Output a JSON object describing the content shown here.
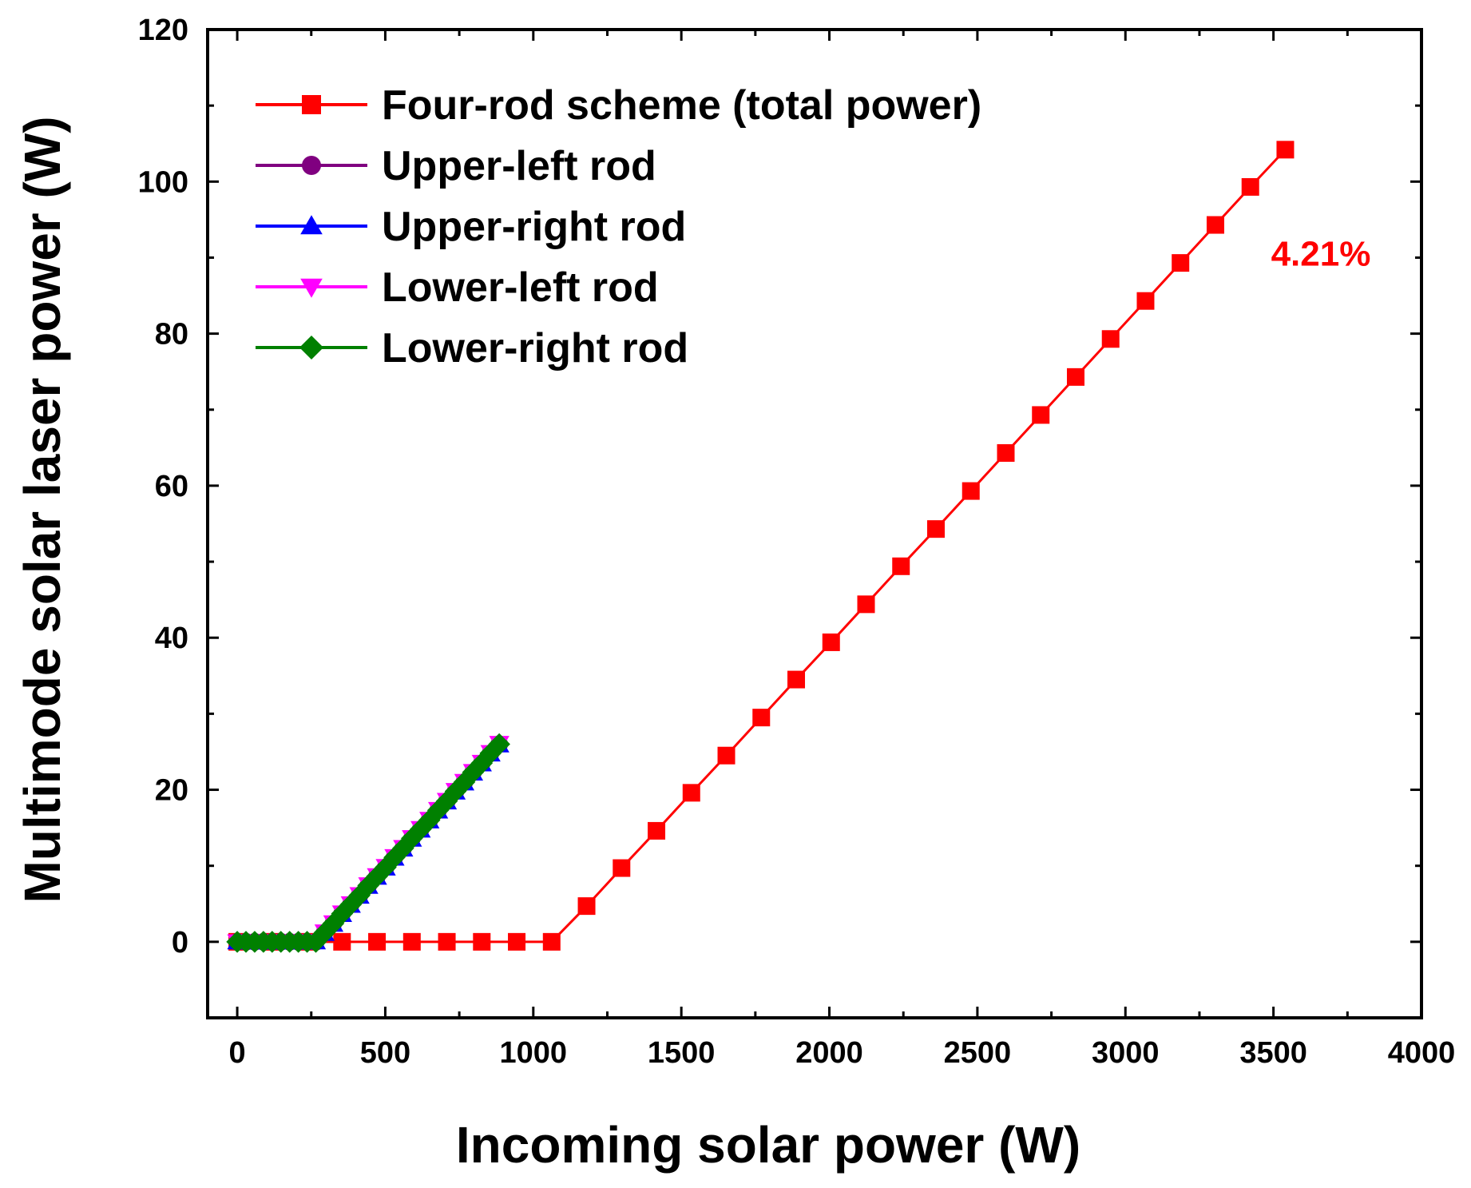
{
  "chart_data": {
    "type": "line",
    "title": "",
    "xlabel": "Incoming solar power (W)",
    "ylabel": "Multimode solar laser power (W)",
    "xlim": [
      -100,
      4000
    ],
    "ylim": [
      -10,
      120
    ],
    "xticks": [
      0,
      500,
      1000,
      1500,
      2000,
      2500,
      3000,
      3500,
      4000
    ],
    "yticks": [
      0,
      20,
      40,
      60,
      80,
      100,
      120
    ],
    "grid": false,
    "legend_position": "top-left",
    "series": [
      {
        "name": "Four-rod scheme (total power)",
        "color": "#ff0000",
        "marker": "square",
        "x": [
          0,
          118,
          236,
          354,
          472,
          590,
          708,
          826,
          944,
          1062,
          1180,
          1298,
          1416,
          1534,
          1652,
          1770,
          1888,
          2006,
          2124,
          2242,
          2360,
          2478,
          2596,
          2714,
          2832,
          2950,
          3068,
          3186,
          3304,
          3422,
          3540
        ],
        "y": [
          0,
          0,
          0,
          0,
          0,
          0,
          0,
          0,
          0,
          0,
          4.7,
          9.7,
          14.6,
          19.6,
          24.5,
          29.5,
          34.5,
          39.4,
          44.4,
          49.4,
          54.3,
          59.3,
          64.3,
          69.3,
          74.3,
          79.3,
          84.3,
          89.3,
          94.3,
          99.3,
          104.2
        ]
      },
      {
        "name": "Upper-left rod",
        "color": "#800080",
        "marker": "circle",
        "x": [
          0,
          29.5,
          59,
          88.5,
          118,
          147.5,
          177,
          206.5,
          236,
          265.5,
          295,
          324.5,
          354,
          383.5,
          413,
          442.5,
          472,
          501.5,
          531,
          560.5,
          590,
          619.5,
          649,
          678.5,
          708,
          737.5,
          767,
          796.5,
          826,
          855.5,
          885
        ],
        "y": [
          0,
          0,
          0,
          0,
          0,
          0,
          0,
          0,
          0,
          0,
          1.2,
          2.4,
          3.7,
          4.9,
          6.1,
          7.4,
          8.6,
          9.8,
          11.1,
          12.3,
          13.6,
          14.8,
          16.0,
          17.3,
          18.5,
          19.8,
          21.0,
          22.3,
          23.5,
          24.8,
          26.0
        ]
      },
      {
        "name": "Upper-right rod",
        "color": "#0000ff",
        "marker": "triangle-up",
        "x": [
          0,
          29.5,
          59,
          88.5,
          118,
          147.5,
          177,
          206.5,
          236,
          265.5,
          295,
          324.5,
          354,
          383.5,
          413,
          442.5,
          472,
          501.5,
          531,
          560.5,
          590,
          619.5,
          649,
          678.5,
          708,
          737.5,
          767,
          796.5,
          826,
          855.5,
          885
        ],
        "y": [
          0,
          0,
          0,
          0,
          0,
          0,
          0,
          0,
          0,
          0,
          1.1,
          2.3,
          3.6,
          4.8,
          6.0,
          7.3,
          8.5,
          9.7,
          11.0,
          12.2,
          13.5,
          14.7,
          15.9,
          17.2,
          18.4,
          19.7,
          20.9,
          22.2,
          23.4,
          24.7,
          25.9
        ]
      },
      {
        "name": "Lower-left rod",
        "color": "#ff00ff",
        "marker": "triangle-down",
        "x": [
          0,
          29.5,
          59,
          88.5,
          118,
          147.5,
          177,
          206.5,
          236,
          265.5,
          295,
          324.5,
          354,
          383.5,
          413,
          442.5,
          472,
          501.5,
          531,
          560.5,
          590,
          619.5,
          649,
          678.5,
          708,
          737.5,
          767,
          796.5,
          826,
          855.5,
          885
        ],
        "y": [
          0,
          0,
          0,
          0,
          0,
          0,
          0,
          0,
          0,
          0,
          1.3,
          2.5,
          3.8,
          5.0,
          6.2,
          7.5,
          8.7,
          9.9,
          11.2,
          12.4,
          13.7,
          14.9,
          16.1,
          17.4,
          18.6,
          19.9,
          21.1,
          22.4,
          23.6,
          24.9,
          26.1
        ]
      },
      {
        "name": "Lower-right rod",
        "color": "#008000",
        "marker": "diamond",
        "x": [
          0,
          29.5,
          59,
          88.5,
          118,
          147.5,
          177,
          206.5,
          236,
          265.5,
          295,
          324.5,
          354,
          383.5,
          413,
          442.5,
          472,
          501.5,
          531,
          560.5,
          590,
          619.5,
          649,
          678.5,
          708,
          737.5,
          767,
          796.5,
          826,
          855.5,
          885
        ],
        "y": [
          0,
          0,
          0,
          0,
          0,
          0,
          0,
          0,
          0,
          0,
          1.2,
          2.4,
          3.7,
          4.9,
          6.1,
          7.4,
          8.6,
          9.8,
          11.1,
          12.3,
          13.6,
          14.8,
          16.0,
          17.3,
          18.5,
          19.8,
          21.0,
          22.3,
          23.5,
          24.8,
          26.0
        ]
      }
    ],
    "annotations": [
      {
        "text": "4.21%",
        "color": "#ff0000",
        "x": 3660,
        "y": 90.5
      }
    ]
  }
}
